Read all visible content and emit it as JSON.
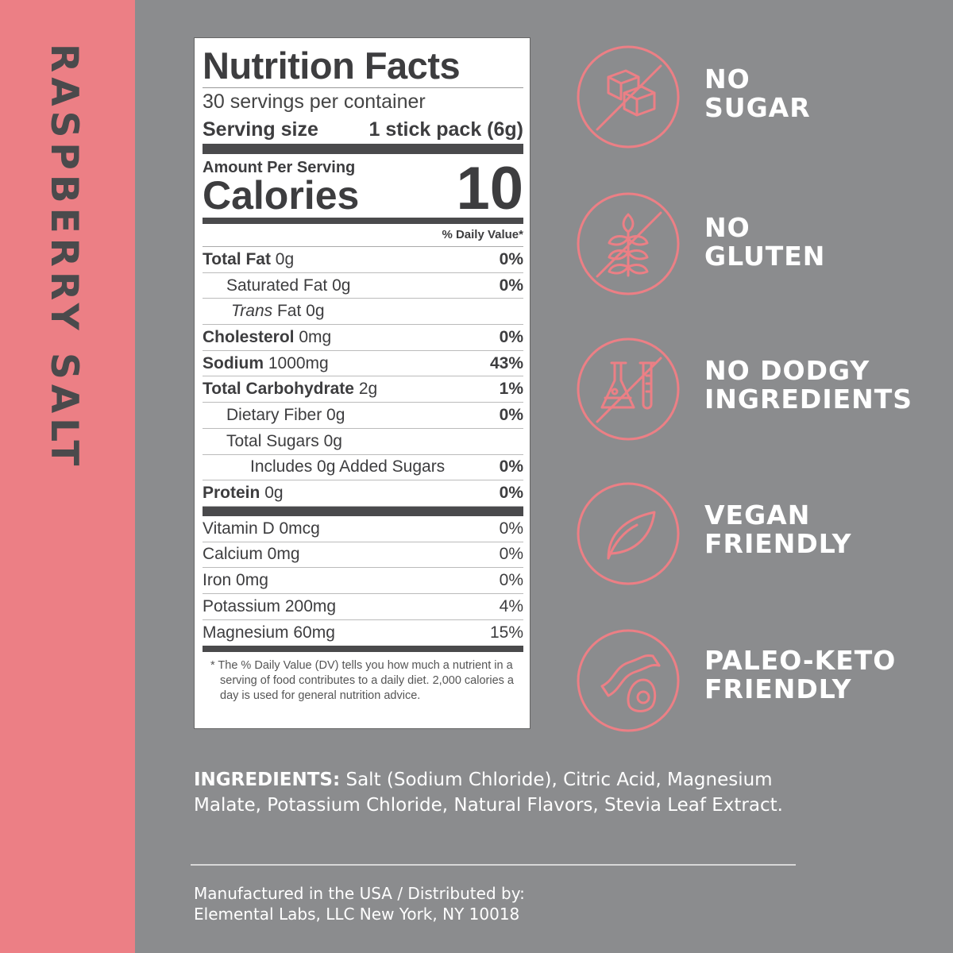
{
  "flavor": "RASPBERRY SALT",
  "colors": {
    "accent": "#ec7f85",
    "background": "#8b8c8e",
    "label_text": "#3d3d3f"
  },
  "nutrition": {
    "title": "Nutrition Facts",
    "servings": "30 servings per container",
    "serving_size_label": "Serving size",
    "serving_size_value": "1 stick pack (6g)",
    "amount_per_serving": "Amount Per Serving",
    "calories_label": "Calories",
    "calories_value": "10",
    "dv_header": "% Daily Value*",
    "rows": [
      {
        "name": "Total Fat",
        "amount": "0g",
        "dv": "0%"
      },
      {
        "name": "Saturated Fat",
        "amount": "0g",
        "dv": "0%"
      },
      {
        "name": "Trans",
        "name2": "Fat",
        "amount": "0g",
        "dv": ""
      },
      {
        "name": "Cholesterol",
        "amount": "0mg",
        "dv": "0%"
      },
      {
        "name": "Sodium",
        "amount": "1000mg",
        "dv": "43%"
      },
      {
        "name": "Total Carbohydrate",
        "amount": "2g",
        "dv": "1%"
      },
      {
        "name": "Dietary Fiber",
        "amount": "0g",
        "dv": "0%"
      },
      {
        "name": "Total Sugars",
        "amount": "0g",
        "dv": ""
      },
      {
        "name": "Includes 0g Added Sugars",
        "amount": "",
        "dv": "0%"
      },
      {
        "name": "Protein",
        "amount": "0g",
        "dv": "0%"
      }
    ],
    "vitamins": [
      {
        "name": "Vitamin D 0mcg",
        "dv": "0%"
      },
      {
        "name": "Calcium 0mg",
        "dv": "0%"
      },
      {
        "name": "Iron 0mg",
        "dv": "0%"
      },
      {
        "name": "Potassium 200mg",
        "dv": "4%"
      },
      {
        "name": "Magnesium 60mg",
        "dv": "15%"
      }
    ],
    "footnote": "* The % Daily Value (DV) tells you how much a nutrient in a serving of food contributes to a daily diet. 2,000 calories a day is used for general nutrition advice."
  },
  "claims": [
    {
      "icon": "no-sugar-icon",
      "line1": "NO",
      "line2": "SUGAR"
    },
    {
      "icon": "no-gluten-icon",
      "line1": "NO",
      "line2": "GLUTEN"
    },
    {
      "icon": "no-chemicals-icon",
      "line1": "NO DODGY",
      "line2": "INGREDIENTS"
    },
    {
      "icon": "leaf-icon",
      "line1": "VEGAN",
      "line2": "FRIENDLY"
    },
    {
      "icon": "bacon-egg-icon",
      "line1": "PALEO-KETO",
      "line2": "FRIENDLY"
    }
  ],
  "ingredients": {
    "label": "INGREDIENTS:",
    "text": " Salt (Sodium Chloride), Citric Acid, Magnesium Malate, Potassium Chloride, Natural Flavors, Stevia Leaf Extract."
  },
  "manufacturer": {
    "line1": "Manufactured in the USA / Distributed by:",
    "line2": "Elemental Labs, LLC New York, NY 10018"
  }
}
